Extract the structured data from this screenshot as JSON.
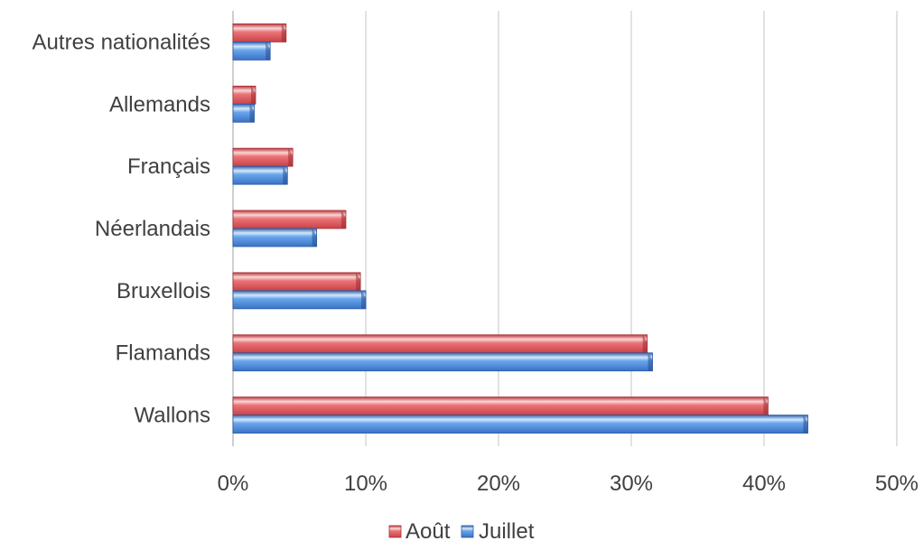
{
  "chart_data": {
    "type": "bar",
    "orientation": "horizontal",
    "categories": [
      "Autres nationalités",
      "Allemands",
      "Français",
      "Néerlandais",
      "Bruxellois",
      "Flamands",
      "Wallons"
    ],
    "series": [
      {
        "name": "Août",
        "color": "#e0565b",
        "values": [
          4.0,
          1.7,
          4.5,
          8.5,
          9.6,
          31.2,
          40.3
        ]
      },
      {
        "name": "Juillet",
        "color": "#4a86d8",
        "values": [
          2.8,
          1.6,
          4.1,
          6.3,
          10.0,
          31.6,
          43.3
        ]
      }
    ],
    "x_ticks": [
      "0%",
      "10%",
      "20%",
      "30%",
      "40%",
      "50%"
    ],
    "xlim": [
      0,
      50
    ],
    "grid": true,
    "legend_position": "bottom",
    "legend_order": [
      "Août",
      "Juillet"
    ],
    "title": "",
    "xlabel": "",
    "ylabel": ""
  }
}
